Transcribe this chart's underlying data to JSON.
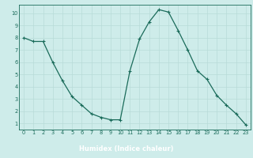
{
  "x": [
    0,
    1,
    2,
    3,
    4,
    5,
    6,
    7,
    8,
    9,
    10,
    11,
    12,
    13,
    14,
    15,
    16,
    17,
    18,
    19,
    20,
    21,
    22,
    23
  ],
  "y": [
    8.0,
    7.7,
    7.7,
    6.0,
    4.5,
    3.2,
    2.5,
    1.8,
    1.5,
    1.3,
    1.3,
    5.3,
    7.9,
    9.3,
    10.3,
    10.1,
    8.6,
    7.0,
    5.3,
    4.6,
    3.3,
    2.5,
    1.8,
    0.9
  ],
  "line_color": "#1a6b5a",
  "marker": "+",
  "marker_size": 3,
  "marker_lw": 0.8,
  "line_width": 0.9,
  "bg_color": "#ceecea",
  "plot_bg_color": "#ceecea",
  "grid_color": "#b8dbd8",
  "tick_label_color": "#1a6b5a",
  "xlabel": "Humidex (Indice chaleur)",
  "xlabel_color": "#1a6b5a",
  "xlabel_fontsize": 6.0,
  "xlim": [
    -0.5,
    23.5
  ],
  "ylim": [
    0.5,
    10.7
  ],
  "yticks": [
    1,
    2,
    3,
    4,
    5,
    6,
    7,
    8,
    9,
    10
  ],
  "xticks": [
    0,
    1,
    2,
    3,
    4,
    5,
    6,
    7,
    8,
    9,
    10,
    11,
    12,
    13,
    14,
    15,
    16,
    17,
    18,
    19,
    20,
    21,
    22,
    23
  ],
  "tick_fontsize": 4.8,
  "axis_color": "#1a6b5a",
  "bottom_bar_color": "#5aaba0",
  "bottom_bar_height": 0.13
}
